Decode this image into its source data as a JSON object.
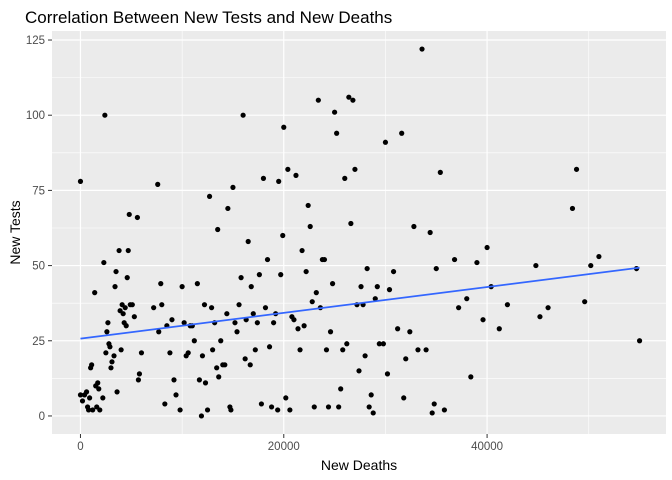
{
  "chart_data": {
    "type": "scatter",
    "title": "Correlation Between New Tests and New Deaths",
    "xlabel": "New Deaths",
    "ylabel": "New Tests",
    "xlim": [
      -2800,
      57600
    ],
    "ylim": [
      -6,
      128
    ],
    "x_ticks": [
      0,
      20000,
      40000
    ],
    "x_tick_labels": [
      "0",
      "20000",
      "40000"
    ],
    "y_ticks": [
      0,
      25,
      50,
      75,
      100,
      125
    ],
    "y_tick_labels": [
      "0",
      "25",
      "50",
      "75",
      "100",
      "125"
    ],
    "grid": true,
    "legend": "none",
    "colors": {
      "panel": "#ebebeb",
      "grid": "#ffffff",
      "point": "#000000",
      "trend": "#3366ff",
      "tick": "#4d4d4d"
    },
    "trend_line": {
      "x": [
        0,
        55000
      ],
      "y": [
        25.7,
        49.3
      ]
    },
    "points": [
      [
        0,
        78
      ],
      [
        0,
        7
      ],
      [
        200,
        5
      ],
      [
        400,
        7
      ],
      [
        600,
        8
      ],
      [
        700,
        3
      ],
      [
        800,
        2
      ],
      [
        900,
        6
      ],
      [
        1000,
        16
      ],
      [
        1100,
        17
      ],
      [
        1200,
        2
      ],
      [
        1400,
        41
      ],
      [
        1500,
        10
      ],
      [
        1600,
        3
      ],
      [
        1700,
        11
      ],
      [
        1800,
        9
      ],
      [
        1900,
        2
      ],
      [
        2200,
        6
      ],
      [
        2300,
        51
      ],
      [
        2400,
        100
      ],
      [
        2500,
        21
      ],
      [
        2600,
        28
      ],
      [
        2700,
        31
      ],
      [
        2800,
        24
      ],
      [
        2900,
        23
      ],
      [
        3000,
        16
      ],
      [
        3100,
        18
      ],
      [
        3300,
        20
      ],
      [
        3400,
        43
      ],
      [
        3500,
        48
      ],
      [
        3600,
        8
      ],
      [
        3800,
        55
      ],
      [
        3900,
        35
      ],
      [
        4000,
        22
      ],
      [
        4100,
        37
      ],
      [
        4200,
        34
      ],
      [
        4300,
        31
      ],
      [
        4400,
        36
      ],
      [
        4500,
        30
      ],
      [
        4600,
        46
      ],
      [
        4700,
        55
      ],
      [
        4800,
        67
      ],
      [
        4900,
        37
      ],
      [
        5100,
        37
      ],
      [
        5300,
        33
      ],
      [
        5600,
        66
      ],
      [
        5700,
        12
      ],
      [
        5800,
        14
      ],
      [
        6000,
        21
      ],
      [
        7200,
        36
      ],
      [
        7600,
        77
      ],
      [
        7700,
        28
      ],
      [
        7900,
        44
      ],
      [
        8000,
        37
      ],
      [
        8300,
        4
      ],
      [
        8500,
        30
      ],
      [
        8800,
        21
      ],
      [
        9000,
        32
      ],
      [
        9200,
        12
      ],
      [
        9400,
        7
      ],
      [
        9800,
        2
      ],
      [
        10000,
        43
      ],
      [
        10200,
        31
      ],
      [
        10400,
        20
      ],
      [
        10600,
        21
      ],
      [
        10800,
        30
      ],
      [
        11000,
        30
      ],
      [
        11200,
        25
      ],
      [
        11500,
        44
      ],
      [
        11700,
        12
      ],
      [
        11900,
        0
      ],
      [
        12000,
        20
      ],
      [
        12200,
        37
      ],
      [
        12300,
        11
      ],
      [
        12500,
        2
      ],
      [
        12700,
        73
      ],
      [
        12900,
        36
      ],
      [
        13000,
        22
      ],
      [
        13200,
        31
      ],
      [
        13400,
        16
      ],
      [
        13500,
        62
      ],
      [
        13600,
        13
      ],
      [
        13800,
        25
      ],
      [
        14000,
        17
      ],
      [
        14200,
        17
      ],
      [
        14400,
        34
      ],
      [
        14500,
        69
      ],
      [
        14700,
        3
      ],
      [
        14800,
        2
      ],
      [
        15000,
        76
      ],
      [
        15200,
        31
      ],
      [
        15400,
        28
      ],
      [
        15600,
        37
      ],
      [
        15800,
        46
      ],
      [
        16000,
        100
      ],
      [
        16200,
        19
      ],
      [
        16300,
        32
      ],
      [
        16500,
        58
      ],
      [
        16700,
        17
      ],
      [
        16800,
        43
      ],
      [
        17000,
        34
      ],
      [
        17200,
        22
      ],
      [
        17400,
        31
      ],
      [
        17600,
        47
      ],
      [
        17800,
        4
      ],
      [
        18000,
        79
      ],
      [
        18200,
        36
      ],
      [
        18400,
        52
      ],
      [
        18600,
        23
      ],
      [
        18800,
        3
      ],
      [
        19000,
        31
      ],
      [
        19200,
        34
      ],
      [
        19400,
        2
      ],
      [
        19500,
        78
      ],
      [
        19700,
        47
      ],
      [
        19900,
        60
      ],
      [
        20000,
        96
      ],
      [
        20200,
        6
      ],
      [
        20400,
        82
      ],
      [
        20600,
        2
      ],
      [
        20800,
        33
      ],
      [
        21000,
        32
      ],
      [
        21200,
        80
      ],
      [
        21400,
        29
      ],
      [
        21600,
        22
      ],
      [
        21800,
        55
      ],
      [
        22000,
        30
      ],
      [
        22200,
        48
      ],
      [
        22400,
        70
      ],
      [
        22600,
        63
      ],
      [
        22800,
        38
      ],
      [
        23000,
        3
      ],
      [
        23200,
        41
      ],
      [
        23400,
        105
      ],
      [
        23600,
        36
      ],
      [
        23800,
        52
      ],
      [
        24000,
        52
      ],
      [
        24200,
        22
      ],
      [
        24400,
        3
      ],
      [
        24600,
        28
      ],
      [
        24800,
        44
      ],
      [
        25000,
        101
      ],
      [
        25200,
        94
      ],
      [
        25400,
        3
      ],
      [
        25600,
        9
      ],
      [
        25800,
        22
      ],
      [
        26000,
        79
      ],
      [
        26200,
        24
      ],
      [
        26400,
        106
      ],
      [
        26600,
        64
      ],
      [
        26800,
        105
      ],
      [
        27000,
        82
      ],
      [
        27200,
        37
      ],
      [
        27400,
        15
      ],
      [
        27600,
        43
      ],
      [
        27800,
        37
      ],
      [
        28000,
        20
      ],
      [
        28200,
        49
      ],
      [
        28400,
        3
      ],
      [
        28600,
        7
      ],
      [
        28800,
        1
      ],
      [
        29000,
        39
      ],
      [
        29200,
        43
      ],
      [
        29400,
        24
      ],
      [
        29800,
        24
      ],
      [
        30000,
        91
      ],
      [
        30200,
        14
      ],
      [
        30400,
        42
      ],
      [
        30800,
        48
      ],
      [
        31200,
        29
      ],
      [
        31600,
        94
      ],
      [
        31800,
        6
      ],
      [
        32000,
        19
      ],
      [
        32400,
        28
      ],
      [
        32800,
        63
      ],
      [
        33200,
        22
      ],
      [
        33600,
        122
      ],
      [
        34000,
        22
      ],
      [
        34400,
        61
      ],
      [
        34600,
        1
      ],
      [
        34800,
        4
      ],
      [
        35000,
        49
      ],
      [
        35400,
        81
      ],
      [
        35800,
        2
      ],
      [
        36800,
        52
      ],
      [
        37200,
        36
      ],
      [
        38000,
        39
      ],
      [
        38400,
        13
      ],
      [
        39000,
        51
      ],
      [
        39600,
        32
      ],
      [
        40000,
        56
      ],
      [
        40400,
        43
      ],
      [
        41200,
        29
      ],
      [
        42000,
        37
      ],
      [
        44800,
        50
      ],
      [
        45200,
        33
      ],
      [
        46000,
        36
      ],
      [
        48400,
        69
      ],
      [
        48800,
        82
      ],
      [
        49600,
        38
      ],
      [
        50200,
        50
      ],
      [
        51000,
        53
      ],
      [
        54700,
        49
      ],
      [
        55000,
        25
      ]
    ]
  }
}
